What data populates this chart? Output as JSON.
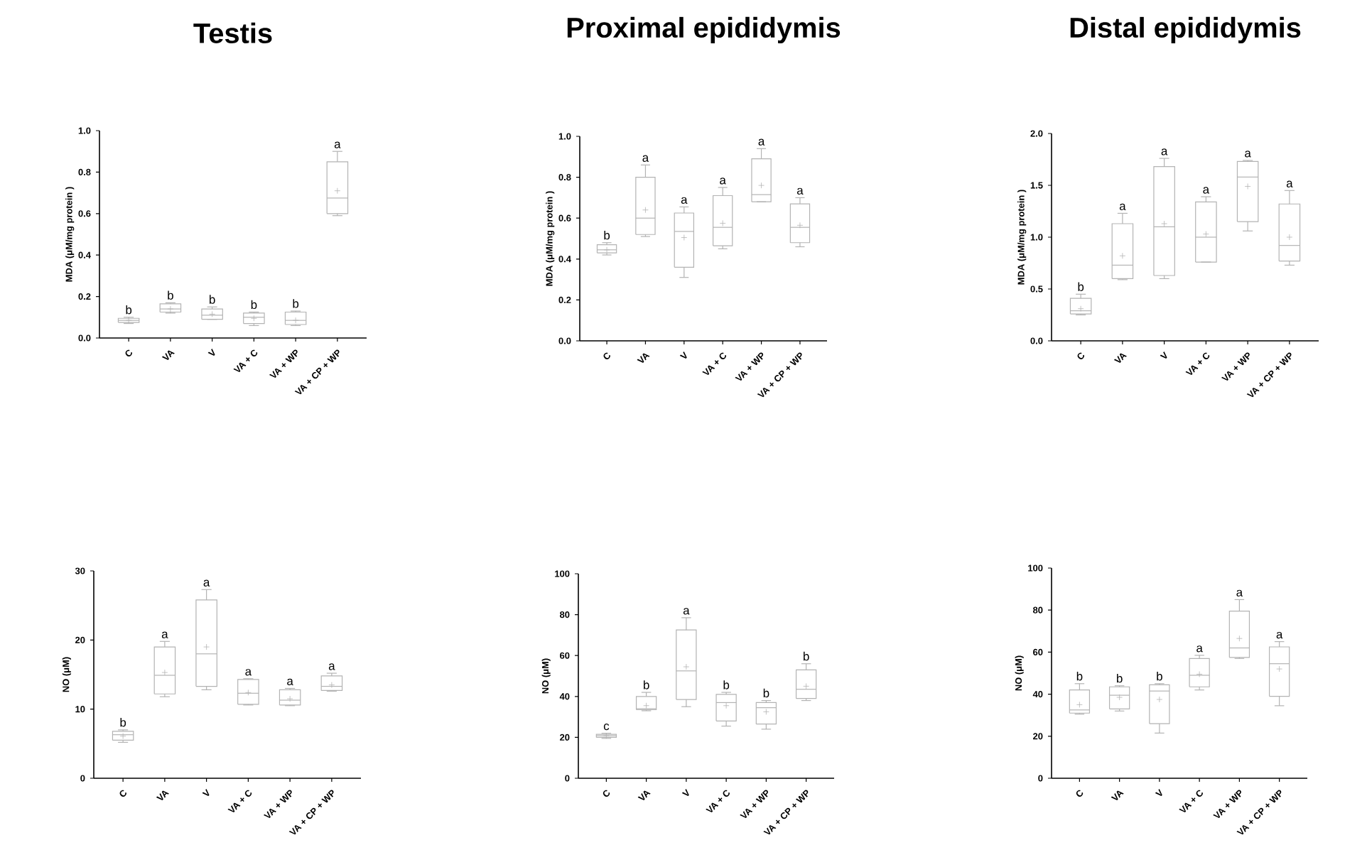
{
  "chart_data": [
    {
      "type": "box",
      "title": "Testis",
      "ylabel": "MDA (μM/mg protein )",
      "color": "#b3b3b3",
      "categories": [
        "C",
        "VA",
        "V",
        "VA + C",
        "VA + WP",
        "VA + CP + WP"
      ],
      "boxes": [
        {
          "low": 0.07,
          "q1": 0.075,
          "median": 0.085,
          "q3": 0.095,
          "high": 0.1,
          "mean": 0.085
        },
        {
          "low": 0.12,
          "q1": 0.125,
          "median": 0.14,
          "q3": 0.165,
          "high": 0.17,
          "mean": 0.14
        },
        {
          "low": 0.09,
          "q1": 0.09,
          "median": 0.11,
          "q3": 0.14,
          "high": 0.15,
          "mean": 0.115
        },
        {
          "low": 0.06,
          "q1": 0.07,
          "median": 0.1,
          "q3": 0.12,
          "high": 0.125,
          "mean": 0.095
        },
        {
          "low": 0.06,
          "q1": 0.065,
          "median": 0.085,
          "q3": 0.125,
          "high": 0.13,
          "mean": 0.085
        },
        {
          "low": 0.59,
          "q1": 0.6,
          "median": 0.675,
          "q3": 0.85,
          "high": 0.9,
          "mean": 0.71
        }
      ],
      "ylim": [
        0,
        1
      ],
      "yticks": [
        {
          "value": 0,
          "label": "0.0"
        },
        0.2,
        0.4,
        0.6,
        0.8,
        {
          "value": 1,
          "label": "1.0"
        }
      ],
      "annotations": [
        "b",
        "b",
        "b",
        "b",
        "b",
        "a"
      ]
    },
    {
      "type": "box",
      "title": "Proximal epididymis",
      "ylabel": "MDA (μM/mg protein )",
      "color": "#b3b3b3",
      "categories": [
        "C",
        "VA",
        "V",
        "VA + C",
        "VA + WP",
        "VA + CP + WP"
      ],
      "boxes": [
        {
          "low": 0.42,
          "q1": 0.43,
          "median": 0.445,
          "q3": 0.47,
          "high": 0.48,
          "mean": 0.445
        },
        {
          "low": 0.51,
          "q1": 0.52,
          "median": 0.6,
          "q3": 0.8,
          "high": 0.86,
          "mean": 0.64
        },
        {
          "low": 0.31,
          "q1": 0.36,
          "median": 0.535,
          "q3": 0.625,
          "high": 0.655,
          "mean": 0.505
        },
        {
          "low": 0.45,
          "q1": 0.465,
          "median": 0.555,
          "q3": 0.71,
          "high": 0.75,
          "mean": 0.575
        },
        {
          "low": 0.68,
          "q1": 0.68,
          "median": 0.715,
          "q3": 0.89,
          "high": 0.94,
          "mean": 0.76
        },
        {
          "low": 0.46,
          "q1": 0.48,
          "median": 0.555,
          "q3": 0.67,
          "high": 0.7,
          "mean": 0.565
        }
      ],
      "ylim": [
        0,
        1
      ],
      "yticks": [
        {
          "value": 0,
          "label": "0.0"
        },
        0.2,
        0.4,
        0.6,
        0.8,
        {
          "value": 1,
          "label": "1.0"
        }
      ],
      "annotations": [
        "b",
        "a",
        "a",
        "a",
        "a",
        "a"
      ]
    },
    {
      "type": "box",
      "title": "Distal epididymis",
      "ylabel": "MDA (μM/mg protein )",
      "color": "#b3b3b3",
      "categories": [
        "C",
        "VA",
        "V",
        "VA + C",
        "VA + WP",
        "VA + CP + WP"
      ],
      "boxes": [
        {
          "low": 0.25,
          "q1": 0.26,
          "median": 0.29,
          "q3": 0.41,
          "high": 0.45,
          "mean": 0.31
        },
        {
          "low": 0.59,
          "q1": 0.6,
          "median": 0.73,
          "q3": 1.13,
          "high": 1.23,
          "mean": 0.82
        },
        {
          "low": 0.6,
          "q1": 0.63,
          "median": 1.1,
          "q3": 1.68,
          "high": 1.76,
          "mean": 1.13
        },
        {
          "low": 0.76,
          "q1": 0.76,
          "median": 1.0,
          "q3": 1.34,
          "high": 1.39,
          "mean": 1.03
        },
        {
          "low": 1.06,
          "q1": 1.15,
          "median": 1.58,
          "q3": 1.73,
          "high": 1.74,
          "mean": 1.49
        },
        {
          "low": 0.73,
          "q1": 0.77,
          "median": 0.92,
          "q3": 1.32,
          "high": 1.45,
          "mean": 1.0
        }
      ],
      "ylim": [
        0,
        2
      ],
      "yticks": [
        {
          "value": 0,
          "label": "0.0"
        },
        0.5,
        {
          "value": 1,
          "label": "1.0"
        },
        1.5,
        {
          "value": 2,
          "label": "2.0"
        }
      ],
      "annotations": [
        "b",
        "a",
        "a",
        "a",
        "a",
        "a"
      ]
    },
    {
      "type": "box",
      "ylabel": "NO (μM)",
      "color": "#b3b3b3",
      "categories": [
        "C",
        "VA",
        "V",
        "VA + C",
        "VA + WP",
        "VA + CP + WP"
      ],
      "boxes": [
        {
          "low": 5.2,
          "q1": 5.5,
          "median": 6.3,
          "q3": 6.8,
          "high": 7.0,
          "mean": 6.1
        },
        {
          "low": 11.8,
          "q1": 12.2,
          "median": 14.9,
          "q3": 19.0,
          "high": 19.8,
          "mean": 15.3
        },
        {
          "low": 12.8,
          "q1": 13.3,
          "median": 18.0,
          "q3": 25.8,
          "high": 27.3,
          "mean": 19.0
        },
        {
          "low": 10.6,
          "q1": 10.7,
          "median": 12.3,
          "q3": 14.3,
          "high": 14.4,
          "mean": 12.4
        },
        {
          "low": 10.5,
          "q1": 10.6,
          "median": 11.3,
          "q3": 12.8,
          "high": 13.0,
          "mean": 11.5
        },
        {
          "low": 12.6,
          "q1": 12.7,
          "median": 13.3,
          "q3": 14.8,
          "high": 15.2,
          "mean": 13.5
        }
      ],
      "ylim": [
        0,
        30
      ],
      "yticks": [
        0,
        10,
        20,
        30
      ],
      "annotations": [
        "b",
        "a",
        "a",
        "a",
        "a",
        "a"
      ]
    },
    {
      "type": "box",
      "ylabel": "NO (μM)",
      "color": "#b3b3b3",
      "categories": [
        "C",
        "VA",
        "V",
        "VA + C",
        "VA + WP",
        "VA + CP + WP"
      ],
      "boxes": [
        {
          "low": 19.5,
          "q1": 20,
          "median": 20.8,
          "q3": 21.5,
          "high": 22,
          "mean": 20.8
        },
        {
          "low": 33,
          "q1": 33.5,
          "median": 34,
          "q3": 40,
          "high": 42,
          "mean": 35.5
        },
        {
          "low": 35,
          "q1": 38.5,
          "median": 52.5,
          "q3": 72.5,
          "high": 78.5,
          "mean": 54.5
        },
        {
          "low": 25.5,
          "q1": 28,
          "median": 37,
          "q3": 41,
          "high": 42,
          "mean": 35.5
        },
        {
          "low": 24,
          "q1": 26.5,
          "median": 34.5,
          "q3": 37,
          "high": 38,
          "mean": 32.5
        },
        {
          "low": 38,
          "q1": 39,
          "median": 43.5,
          "q3": 53,
          "high": 56,
          "mean": 45
        }
      ],
      "ylim": [
        0,
        100
      ],
      "yticks": [
        0,
        20,
        40,
        60,
        80,
        100
      ],
      "annotations": [
        "c",
        "b",
        "a",
        "b",
        "b",
        "b"
      ]
    },
    {
      "type": "box",
      "ylabel": "NO (μM)",
      "color": "#b3b3b3",
      "categories": [
        "C",
        "VA",
        "V",
        "VA + C",
        "VA + WP",
        "VA + CP + WP"
      ],
      "boxes": [
        {
          "low": 30.5,
          "q1": 31,
          "median": 32.5,
          "q3": 42,
          "high": 45,
          "mean": 35
        },
        {
          "low": 32,
          "q1": 33,
          "median": 39.5,
          "q3": 43.5,
          "high": 44,
          "mean": 38.5
        },
        {
          "low": 21.5,
          "q1": 26,
          "median": 41.5,
          "q3": 44.5,
          "high": 45,
          "mean": 37.5
        },
        {
          "low": 42,
          "q1": 43.5,
          "median": 49,
          "q3": 57,
          "high": 58.5,
          "mean": 49.5
        },
        {
          "low": 57,
          "q1": 57.5,
          "median": 62,
          "q3": 79.5,
          "high": 85,
          "mean": 66.5
        },
        {
          "low": 34.5,
          "q1": 39,
          "median": 54.5,
          "q3": 62.5,
          "high": 65,
          "mean": 52
        }
      ],
      "ylim": [
        0,
        100
      ],
      "yticks": [
        0,
        20,
        40,
        60,
        80,
        100
      ],
      "annotations": [
        "b",
        "b",
        "b",
        "a",
        "a",
        "a"
      ]
    }
  ]
}
